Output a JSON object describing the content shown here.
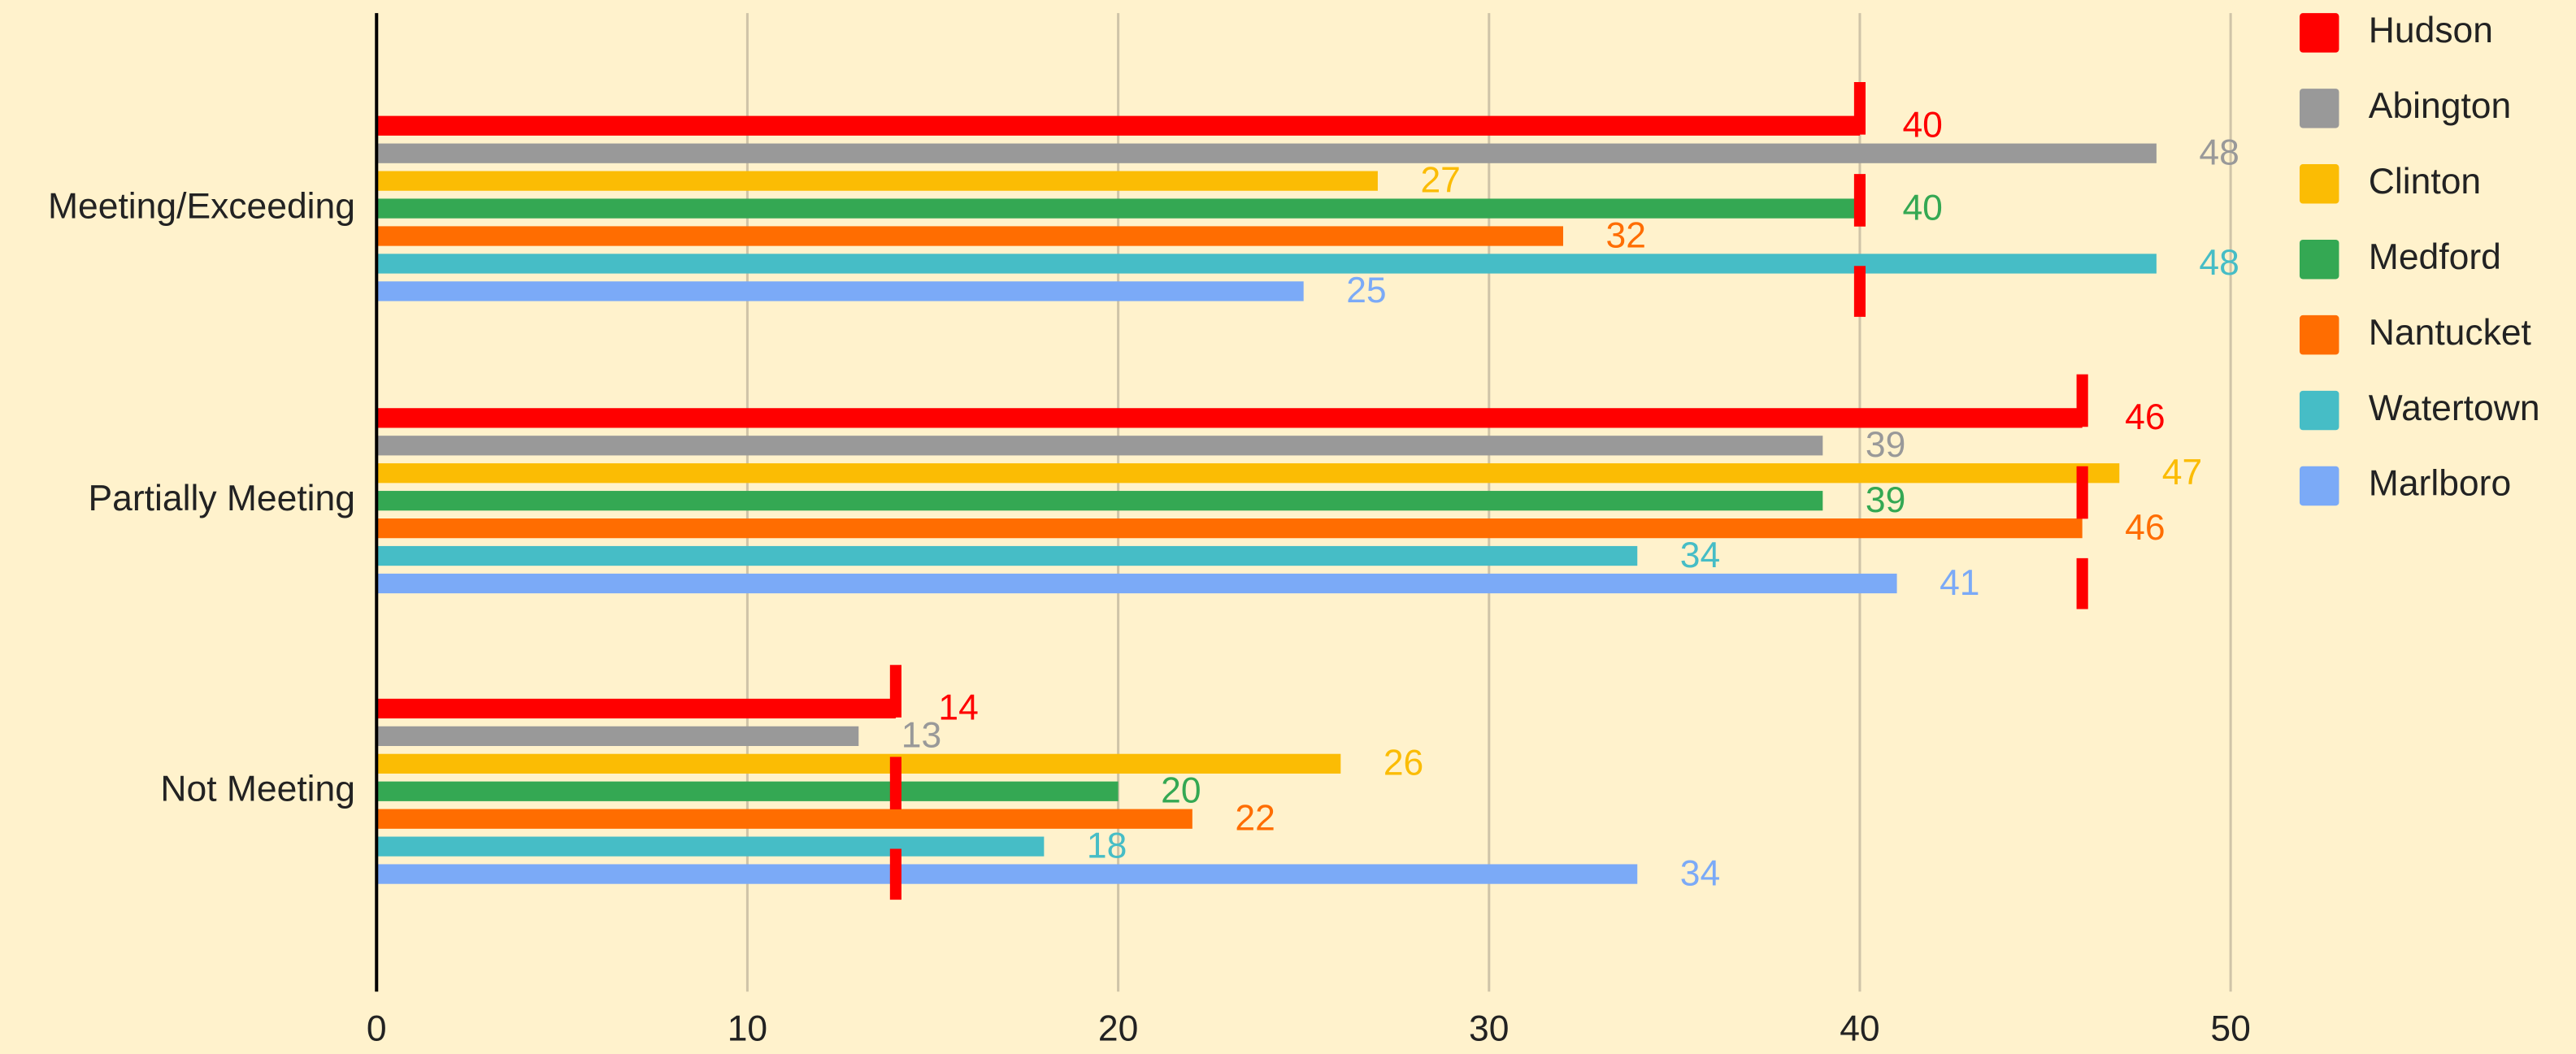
{
  "chart_data": {
    "type": "bar",
    "orientation": "horizontal",
    "categories": [
      "Meeting/Exceeding",
      "Partially Meeting",
      "Not Meeting"
    ],
    "series": [
      {
        "name": "Hudson",
        "color": "#ff0000",
        "values": [
          40,
          46,
          14
        ]
      },
      {
        "name": "Abington",
        "color": "#999999",
        "values": [
          48,
          39,
          13
        ]
      },
      {
        "name": "Clinton",
        "color": "#fbbc04",
        "values": [
          27,
          47,
          26
        ]
      },
      {
        "name": "Medford",
        "color": "#34a853",
        "values": [
          40,
          39,
          20
        ]
      },
      {
        "name": "Nantucket",
        "color": "#ff6d01",
        "values": [
          32,
          46,
          22
        ]
      },
      {
        "name": "Watertown",
        "color": "#46bdc6",
        "values": [
          48,
          34,
          18
        ]
      },
      {
        "name": "Marlboro",
        "color": "#7baaf7",
        "values": [
          25,
          41,
          34
        ]
      }
    ],
    "xlim": [
      0,
      50
    ],
    "xticks": [
      0,
      10,
      20,
      30,
      40,
      50
    ],
    "grid": true,
    "legend": "right"
  }
}
